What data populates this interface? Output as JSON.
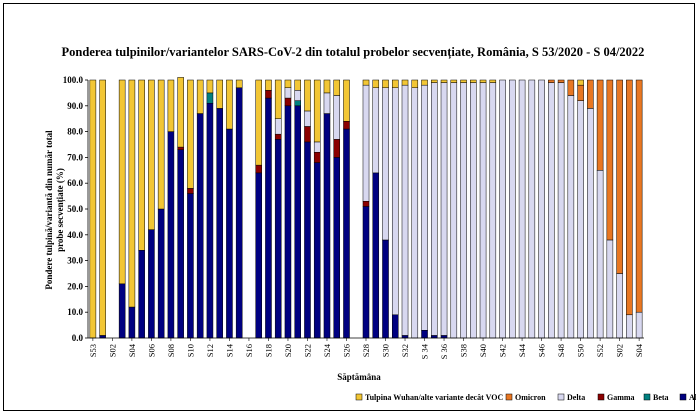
{
  "chart_data": {
    "type": "bar",
    "stacked": true,
    "title": "Ponderea tulpinilor/variantelor SARS-CoV-2 din totalul probelor secvențiate, România, S 53/2020 - S 04/2022",
    "xlabel": "Săptămâna",
    "ylabel": "Pondere tulpină/variantă  din număr total probe secvențiate (%)",
    "ylim": [
      0,
      100
    ],
    "yticks": [
      "0.0",
      "10.0",
      "20.0",
      "30.0",
      "40.0",
      "50.0",
      "60.0",
      "70.0",
      "80.0",
      "90.0",
      "100.0"
    ],
    "grid": false,
    "legend_position": "bottom",
    "categories": [
      "S53",
      "S01",
      "S02",
      "S03",
      "S04",
      "S05",
      "S06",
      "S07",
      "S08",
      "S09",
      "S10",
      "S11",
      "S12",
      "S13",
      "S14",
      "S15",
      "S16",
      "S17",
      "S18",
      "S19",
      "S20",
      "S21",
      "S22",
      "S23",
      "S24",
      "S25",
      "S26",
      "S27",
      "S28",
      "S29",
      "S30",
      "S31",
      "S32",
      "S33",
      "S34",
      "S35",
      "S 36",
      "S37",
      "S38",
      "S39",
      "S40",
      "S41",
      "S42",
      "S43",
      "S44",
      "S45",
      "S46",
      "S47",
      "S48",
      "S49",
      "S50",
      "S51",
      "S52",
      "S01",
      "S02",
      "S03",
      "S04"
    ],
    "tick_labels": [
      "S53",
      "S02",
      "S04",
      "S06",
      "S08",
      "S10",
      "S12",
      "S14",
      "S16",
      "S18",
      "S20",
      "S22",
      "S24",
      "S26",
      "S28",
      "S30",
      "S32",
      "S 34",
      "S 36",
      "S38",
      "S40",
      "S42",
      "S44",
      "S46",
      "S48",
      "S50",
      "S52",
      "S02",
      "S04"
    ],
    "series": [
      {
        "name": "Alpha",
        "color": "#000080",
        "values": [
          0,
          1,
          0,
          21,
          12,
          34,
          42,
          50,
          80,
          73,
          56,
          87,
          91,
          89,
          81,
          97,
          0,
          64,
          93,
          77,
          90,
          90,
          76,
          68,
          87,
          70,
          81,
          0,
          51,
          64,
          38,
          9,
          1,
          0,
          3,
          1,
          1,
          0,
          0,
          0,
          0,
          0,
          0,
          0,
          0,
          0,
          0,
          0,
          0,
          0,
          0,
          0,
          0,
          0,
          0,
          0,
          0
        ]
      },
      {
        "name": "Beta",
        "color": "#008080",
        "values": [
          0,
          0,
          0,
          0,
          0,
          0,
          0,
          0,
          0,
          0,
          0,
          0,
          4,
          0,
          0,
          0,
          0,
          0,
          0,
          0,
          0,
          2,
          0,
          0,
          0,
          0,
          0,
          0,
          0,
          0,
          0,
          0,
          0,
          0,
          0,
          0,
          0,
          0,
          0,
          0,
          0,
          0,
          0,
          0,
          0,
          0,
          0,
          0,
          0,
          0,
          0,
          0,
          0,
          0,
          0,
          0,
          0
        ]
      },
      {
        "name": "Gamma",
        "color": "#8b0000",
        "values": [
          0,
          0,
          0,
          0,
          0,
          0,
          0,
          0,
          0,
          1,
          2,
          0,
          0,
          0,
          0,
          0,
          0,
          3,
          3,
          2,
          3,
          0,
          6,
          4,
          0,
          7,
          3,
          0,
          2,
          0,
          0,
          0,
          0,
          0,
          0,
          0,
          0,
          0,
          0,
          0,
          0,
          0,
          0,
          0,
          0,
          0,
          0,
          0,
          0,
          0,
          0,
          0,
          0,
          0,
          0,
          0,
          0
        ]
      },
      {
        "name": "Delta",
        "color": "#d8d8f0",
        "values": [
          0,
          0,
          0,
          0,
          0,
          0,
          0,
          0,
          0,
          0,
          0,
          0,
          0,
          0,
          0,
          0,
          0,
          0,
          0,
          6,
          4,
          4,
          6,
          4,
          8,
          17,
          0,
          0,
          45,
          33,
          59,
          88,
          97,
          97,
          95,
          98,
          98,
          99,
          99,
          99,
          99,
          99,
          100,
          100,
          100,
          100,
          100,
          99,
          99,
          94,
          92,
          89,
          65,
          38,
          25,
          9,
          10
        ]
      },
      {
        "name": "Omicron",
        "color": "#e87722",
        "values": [
          0,
          0,
          0,
          0,
          0,
          0,
          0,
          0,
          0,
          0,
          0,
          0,
          0,
          0,
          0,
          0,
          0,
          0,
          0,
          0,
          0,
          0,
          0,
          0,
          0,
          0,
          0,
          0,
          0,
          0,
          0,
          0,
          0,
          0,
          0,
          0,
          0,
          0,
          0,
          0,
          0,
          0,
          0,
          0,
          0,
          0,
          0,
          1,
          1,
          6,
          6,
          11,
          35,
          62,
          75,
          91,
          90
        ]
      },
      {
        "name": "Tulpina Wuhan/alte variante decât VOC",
        "color": "#f2c634",
        "values": [
          100,
          99,
          0,
          79,
          88,
          66,
          58,
          50,
          20,
          27,
          42,
          13,
          5,
          11,
          19,
          3,
          0,
          33,
          4,
          15,
          3,
          4,
          12,
          24,
          5,
          6,
          16,
          0,
          2,
          3,
          3,
          3,
          2,
          3,
          2,
          1,
          1,
          1,
          1,
          1,
          1,
          1,
          0,
          0,
          0,
          0,
          0,
          0,
          0,
          0,
          2,
          0,
          0,
          0,
          0,
          0,
          0
        ]
      }
    ],
    "legend": [
      {
        "label": "Tulpina Wuhan/alte variante decât VOC",
        "color": "#f2c634"
      },
      {
        "label": "Omicron",
        "color": "#e87722"
      },
      {
        "label": "Delta",
        "color": "#d8d8f0"
      },
      {
        "label": "Gamma",
        "color": "#8b0000"
      },
      {
        "label": "Beta",
        "color": "#008080"
      },
      {
        "label": "Alpha",
        "color": "#000080"
      }
    ]
  }
}
